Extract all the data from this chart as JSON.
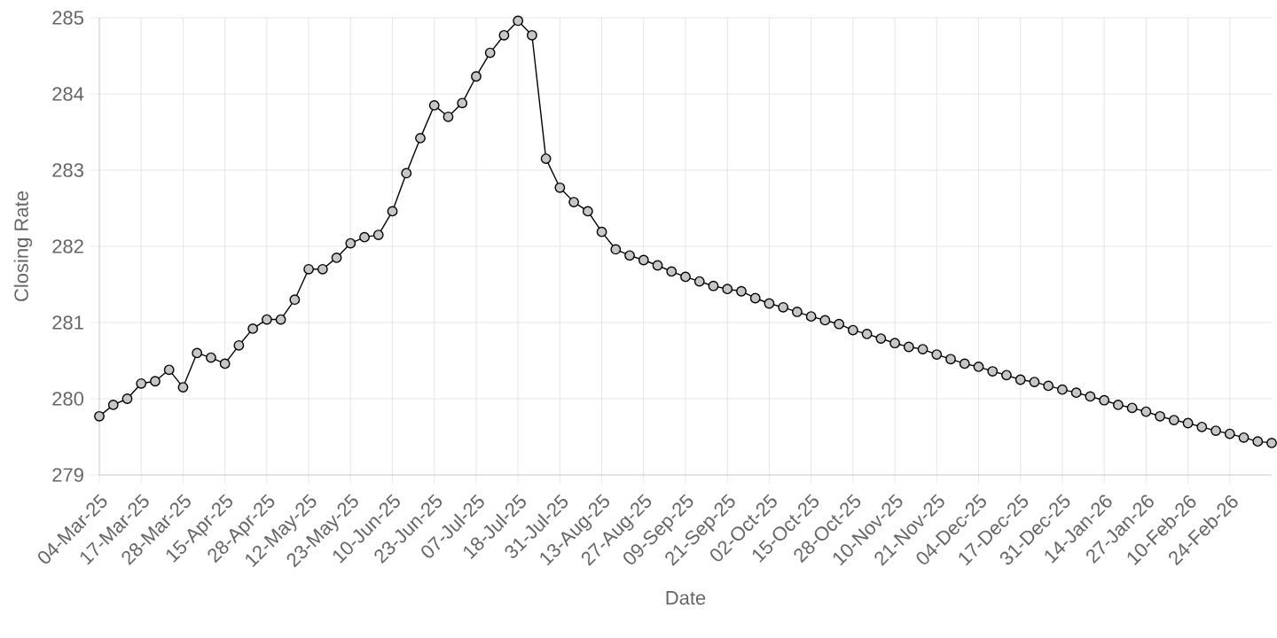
{
  "chart_data": {
    "type": "line",
    "xlabel": "Date",
    "ylabel": "Closing Rate",
    "categories": [
      "04-Mar-25",
      null,
      null,
      "17-Mar-25",
      null,
      null,
      "28-Mar-25",
      null,
      null,
      "15-Apr-25",
      null,
      null,
      "28-Apr-25",
      null,
      null,
      "12-May-25",
      null,
      null,
      "23-May-25",
      null,
      null,
      "10-Jun-25",
      null,
      null,
      "23-Jun-25",
      null,
      null,
      "07-Jul-25",
      null,
      null,
      "18-Jul-25",
      null,
      null,
      "31-Jul-25",
      null,
      null,
      "13-Aug-25",
      null,
      null,
      "27-Aug-25",
      null,
      null,
      "09-Sep-25",
      null,
      null,
      "21-Sep-25",
      null,
      null,
      "02-Oct-25",
      null,
      null,
      "15-Oct-25",
      null,
      null,
      "28-Oct-25",
      null,
      null,
      "10-Nov-25",
      null,
      null,
      "21-Nov-25",
      null,
      null,
      "04-Dec-25",
      null,
      null,
      "17-Dec-25",
      null,
      null,
      "31-Dec-25",
      null,
      null,
      "14-Jan-26",
      null,
      null,
      "27-Jan-26",
      null,
      null,
      "10-Feb-26",
      null,
      null,
      "24-Feb-26",
      null,
      null,
      null
    ],
    "series": [
      {
        "color": "#000000",
        "values": [
          279.77,
          279.92,
          280.0,
          280.2,
          280.23,
          280.38,
          280.15,
          280.6,
          280.54,
          280.46,
          280.7,
          280.92,
          281.04,
          281.04,
          281.3,
          281.7,
          281.7,
          281.85,
          282.04,
          282.12,
          282.15,
          282.46,
          282.96,
          283.42,
          283.85,
          283.7,
          283.88,
          284.23,
          284.54,
          284.77,
          284.96,
          284.77,
          283.15,
          282.77,
          282.58,
          282.46,
          282.19,
          281.96,
          281.88,
          281.82,
          281.75,
          281.67,
          281.6,
          281.54,
          281.48,
          281.44,
          281.41,
          281.32,
          281.25,
          281.2,
          281.14,
          281.08,
          281.03,
          280.98,
          280.9,
          280.85,
          280.79,
          280.73,
          280.68,
          280.65,
          280.58,
          280.52,
          280.46,
          280.42,
          280.36,
          280.31,
          280.25,
          280.22,
          280.17,
          280.12,
          280.08,
          280.03,
          279.98,
          279.92,
          279.88,
          279.83,
          279.77,
          279.72,
          279.68,
          279.63,
          279.58,
          279.54,
          279.49,
          279.44,
          279.42
        ]
      }
    ],
    "ylim": [
      279,
      285
    ],
    "yticks": [
      279,
      280,
      281,
      282,
      283,
      284,
      285
    ],
    "grid": true,
    "marker": "circle"
  }
}
